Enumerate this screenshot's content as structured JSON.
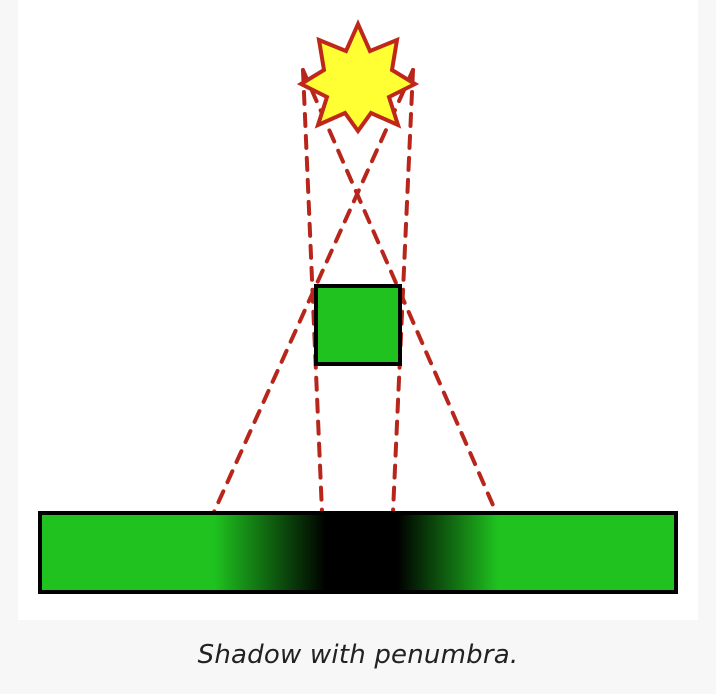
{
  "caption": "Shadow with penumbra.",
  "colors": {
    "light_fill": "#ffff33",
    "light_stroke": "#c0271b",
    "ray": "#b8261b",
    "object_fill": "#1fc21f",
    "surface_fill": "#1fc21f",
    "umbra": "#000000",
    "outline": "#000000"
  },
  "icons": {
    "light_source": "star-burst-icon"
  }
}
